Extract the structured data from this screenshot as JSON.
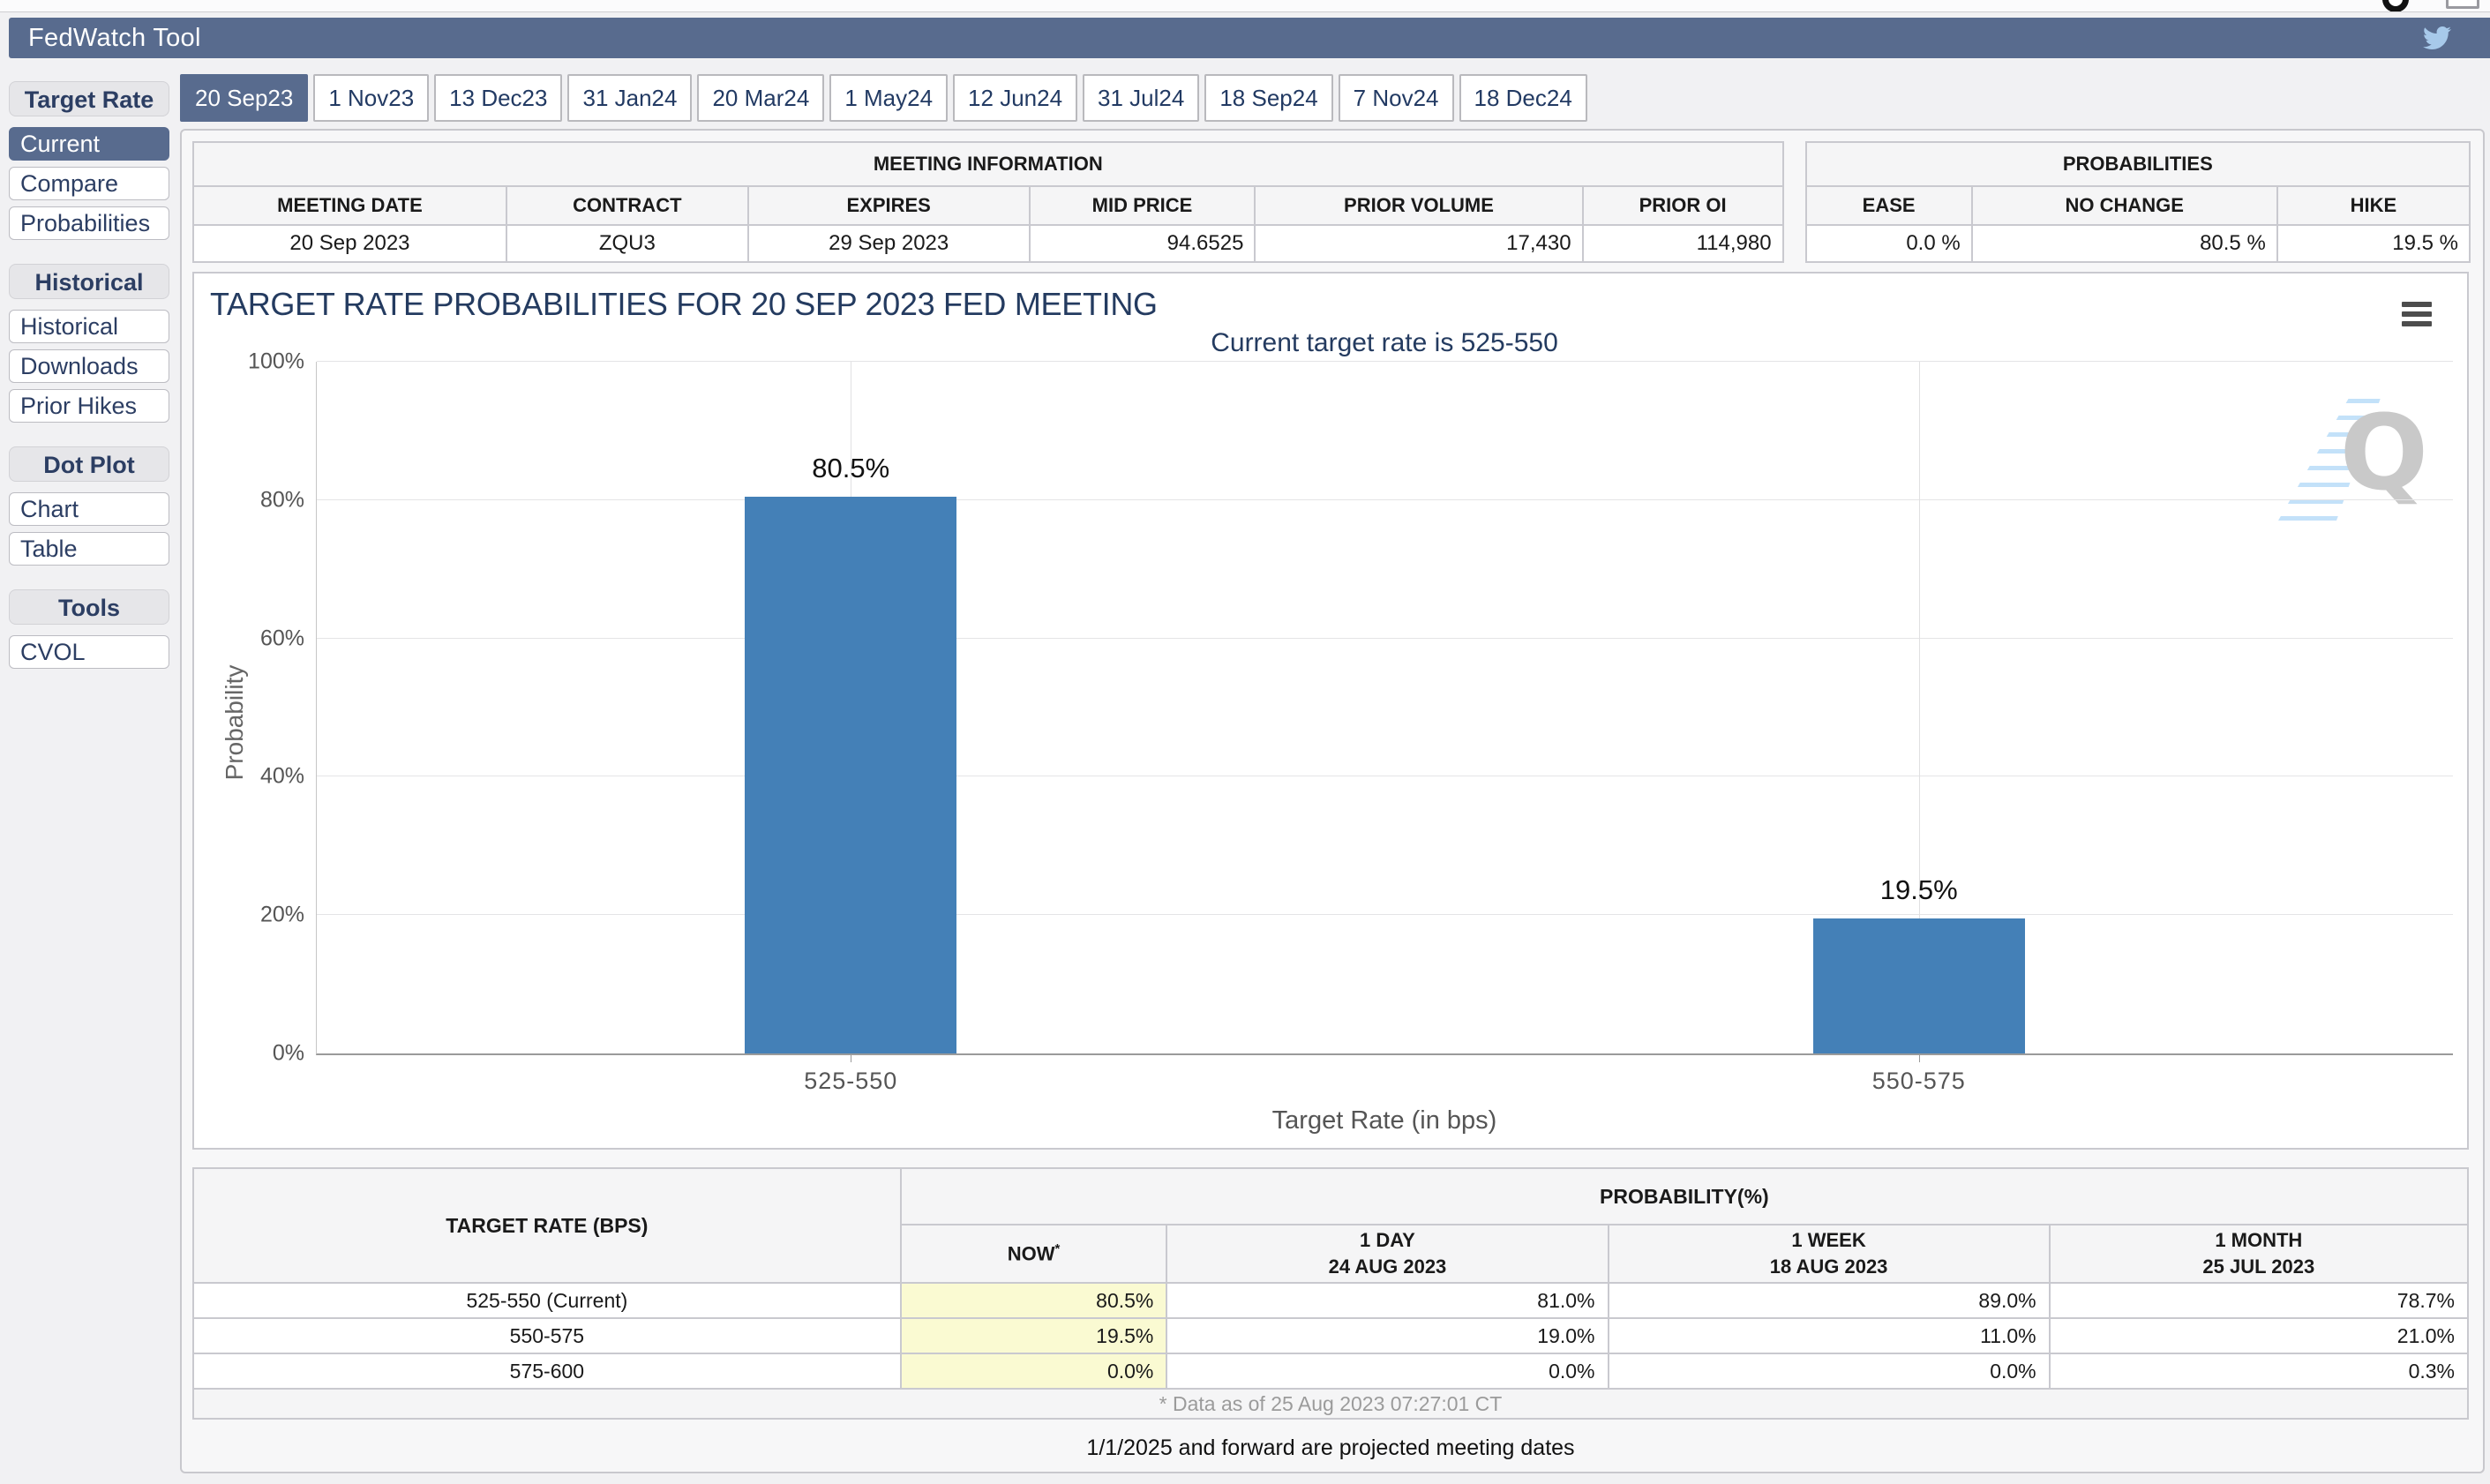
{
  "app": {
    "title": "FedWatch Tool",
    "twitter_icon": "twitter-bird-icon"
  },
  "colors": {
    "accent_slate": "#586b8e",
    "bar_blue": "#4480b7",
    "navy_text": "#223a63",
    "highlight_yellow": "#fafad2",
    "panel_bg": "#f7f7f8",
    "border_grey": "#c9c9cf"
  },
  "tabs": [
    {
      "label": "20 Sep23",
      "selected": true
    },
    {
      "label": "1 Nov23"
    },
    {
      "label": "13 Dec23"
    },
    {
      "label": "31 Jan24"
    },
    {
      "label": "20 Mar24"
    },
    {
      "label": "1 May24"
    },
    {
      "label": "12 Jun24"
    },
    {
      "label": "31 Jul24"
    },
    {
      "label": "18 Sep24"
    },
    {
      "label": "7 Nov24"
    },
    {
      "label": "18 Dec24"
    }
  ],
  "sidebar": {
    "sections": [
      {
        "title": "Target Rate",
        "items": [
          {
            "label": "Current",
            "selected": true
          },
          {
            "label": "Compare"
          },
          {
            "label": "Probabilities"
          }
        ]
      },
      {
        "title": "Historical",
        "items": [
          {
            "label": "Historical"
          },
          {
            "label": "Downloads"
          },
          {
            "label": "Prior Hikes"
          }
        ]
      },
      {
        "title": "Dot Plot",
        "items": [
          {
            "label": "Chart"
          },
          {
            "label": "Table"
          }
        ]
      },
      {
        "title": "Tools",
        "items": [
          {
            "label": "CVOL"
          }
        ]
      }
    ]
  },
  "meeting_info": {
    "title": "MEETING INFORMATION",
    "columns": [
      "MEETING DATE",
      "CONTRACT",
      "EXPIRES",
      "MID PRICE",
      "PRIOR VOLUME",
      "PRIOR OI"
    ],
    "values": [
      "20 Sep 2023",
      "ZQU3",
      "29 Sep 2023",
      "94.6525",
      "17,430",
      "114,980"
    ]
  },
  "probabilities_summary": {
    "title": "PROBABILITIES",
    "columns": [
      "EASE",
      "NO CHANGE",
      "HIKE"
    ],
    "values": [
      "0.0 %",
      "80.5 %",
      "19.5 %"
    ]
  },
  "chart": {
    "title": "TARGET RATE PROBABILITIES FOR 20 SEP 2023 FED MEETING",
    "subtitle": "Current target rate is 525-550",
    "menu_icon": "hamburger-icon",
    "watermark_letter": "Q"
  },
  "chart_data": {
    "type": "bar",
    "title": "TARGET RATE PROBABILITIES FOR 20 SEP 2023 FED MEETING",
    "subtitle": "Current target rate is 525-550",
    "categories": [
      "525-550",
      "550-575"
    ],
    "values": [
      80.5,
      19.5
    ],
    "point_labels": [
      "80.5%",
      "19.5%"
    ],
    "xlabel": "Target Rate (in bps)",
    "ylabel": "Probability",
    "ylim": [
      0,
      100
    ],
    "grid": true,
    "legend": "none",
    "yticks": [
      {
        "v": 0,
        "label": "0%"
      },
      {
        "v": 20,
        "label": "20%"
      },
      {
        "v": 40,
        "label": "40%"
      },
      {
        "v": 60,
        "label": "60%"
      },
      {
        "v": 80,
        "label": "80%"
      },
      {
        "v": 100,
        "label": "100%"
      }
    ]
  },
  "prob_table": {
    "col1_header": "TARGET RATE (BPS)",
    "group_header": "PROBABILITY(%)",
    "sub_headers": [
      {
        "line1": "NOW",
        "sup": "*",
        "line2": ""
      },
      {
        "line1": "1 DAY",
        "line2": "24 AUG 2023"
      },
      {
        "line1": "1 WEEK",
        "line2": "18 AUG 2023"
      },
      {
        "line1": "1 MONTH",
        "line2": "25 JUL 2023"
      }
    ],
    "rows": [
      [
        "525-550 (Current)",
        "80.5%",
        "81.0%",
        "89.0%",
        "78.7%"
      ],
      [
        "550-575",
        "19.5%",
        "19.0%",
        "11.0%",
        "21.0%"
      ],
      [
        "575-600",
        "0.0%",
        "0.0%",
        "0.0%",
        "0.3%"
      ]
    ],
    "footnote": "* Data as of 25 Aug 2023 07:27:01 CT"
  },
  "projected_note": "1/1/2025 and forward are projected meeting dates"
}
